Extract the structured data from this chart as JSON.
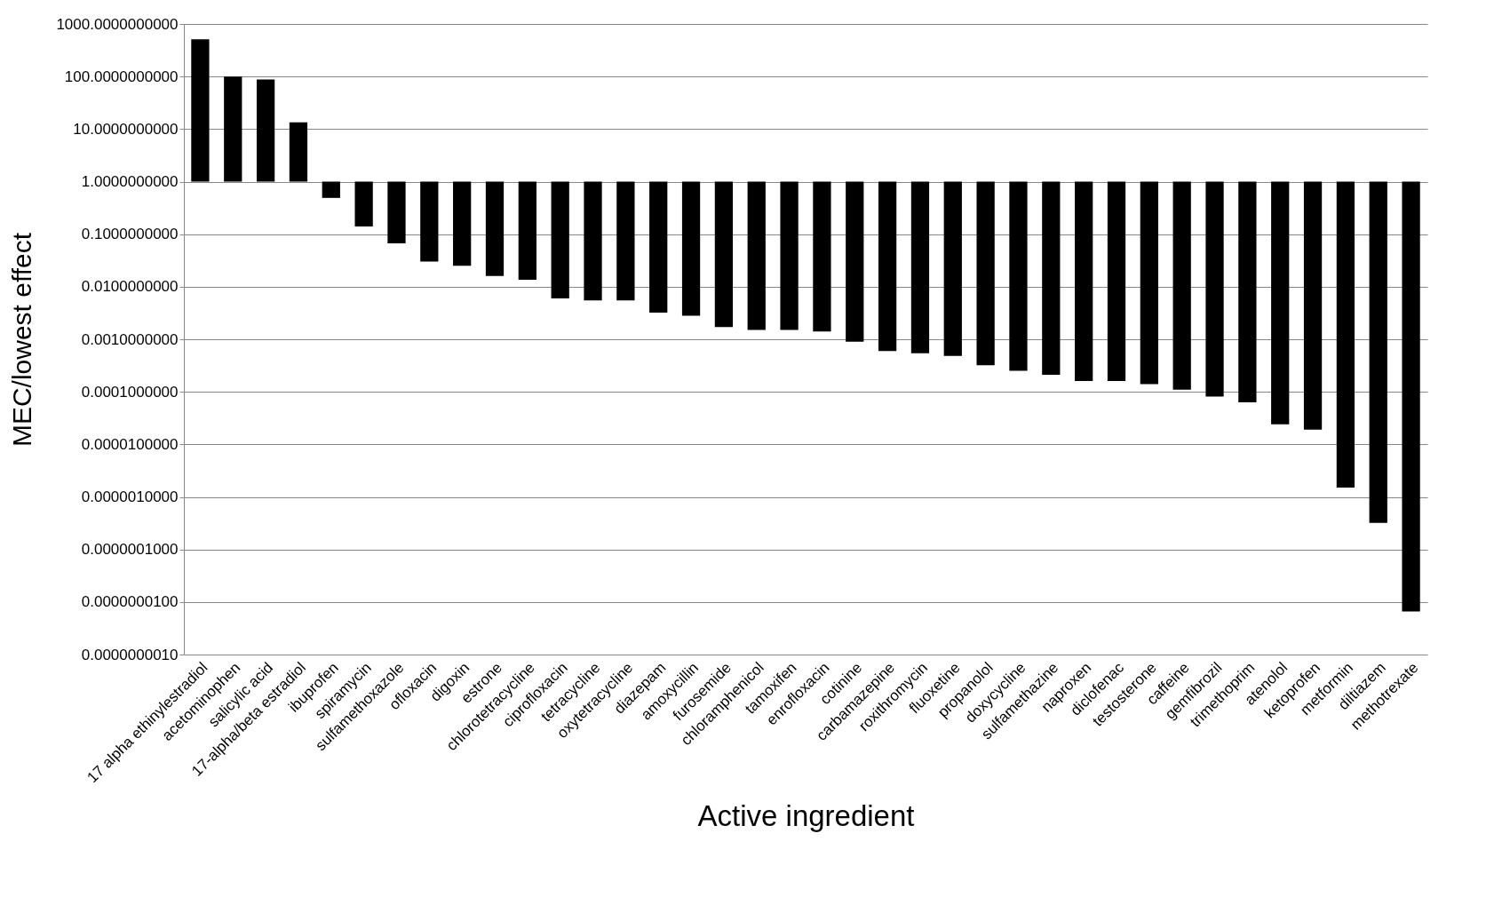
{
  "chart_data": {
    "type": "bar",
    "xlabel": "Active ingredient",
    "ylabel": "MEC/lowest effect",
    "categories": [
      "17 alpha ethinylestradiol",
      "acetominophen",
      "salicylic acid",
      "17-alpha/beta estradiol",
      "ibuprofen",
      "spiramycin",
      "sulfamethoxazole",
      "ofloxacin",
      "digoxin",
      "estrone",
      "chlorotetracycline",
      "ciprofloxacin",
      "tetracycline",
      "oxytetracycline",
      "diazepam",
      "amoxycillin",
      "furosemide",
      "chloramphenicol",
      "tamoxifen",
      "enrofloxacin",
      "cotinine",
      "carbamazepine",
      "roxithromycin",
      "fluoxetine",
      "propanolol",
      "doxycycline",
      "sulfamethazine",
      "naproxen",
      "diclofenac",
      "testosterone",
      "caffeine",
      "gemfibrozil",
      "trimethoprim",
      "atenolol",
      "ketoprofen",
      "metformin",
      "diltiazem",
      "methotrexate"
    ],
    "base": [
      1,
      1,
      1,
      1,
      1,
      1,
      1,
      1,
      1,
      1,
      1,
      1,
      1,
      1,
      1,
      1,
      1,
      1,
      1,
      1,
      1,
      1,
      1,
      1,
      1,
      1,
      1,
      1,
      1,
      1,
      1,
      1,
      1,
      1,
      1,
      1,
      1,
      1
    ],
    "values": [
      509,
      99,
      87,
      12.4,
      -0.51,
      -0.86,
      -0.933,
      -0.97,
      -0.975,
      -0.984,
      -0.9865,
      -0.994,
      -0.9945,
      -0.9945,
      -0.9968,
      -0.9972,
      -0.9983,
      -0.9985,
      -0.9985,
      -0.9986,
      -0.9991,
      -0.9994,
      -0.99946,
      -0.99952,
      -0.99968,
      -0.99975,
      -0.99979,
      -0.99984,
      -0.99984,
      -0.99986,
      -0.99989,
      -0.999919,
      -0.999937,
      -0.999976,
      -0.999981,
      -0.9999985,
      -0.99999968,
      -0.9999999934
    ],
    "color": "#000000",
    "log": "y",
    "ylim": [
      1e-09,
      1000
    ],
    "yticks": [
      {
        "value": 1000,
        "label": "1000.0000000000"
      },
      {
        "value": 100,
        "label": "100.0000000000"
      },
      {
        "value": 10,
        "label": "10.0000000000"
      },
      {
        "value": 1,
        "label": "1.0000000000"
      },
      {
        "value": 0.1,
        "label": "0.1000000000"
      },
      {
        "value": 0.01,
        "label": "0.0100000000"
      },
      {
        "value": 0.001,
        "label": "0.0010000000"
      },
      {
        "value": 0.0001,
        "label": "0.0001000000"
      },
      {
        "value": 1e-05,
        "label": "0.0000100000"
      },
      {
        "value": 1e-06,
        "label": "0.0000010000"
      },
      {
        "value": 1e-07,
        "label": "0.0000001000"
      },
      {
        "value": 1e-08,
        "label": "0.0000000100"
      },
      {
        "value": 1e-09,
        "label": "0.0000000010"
      }
    ],
    "grid": "y"
  }
}
